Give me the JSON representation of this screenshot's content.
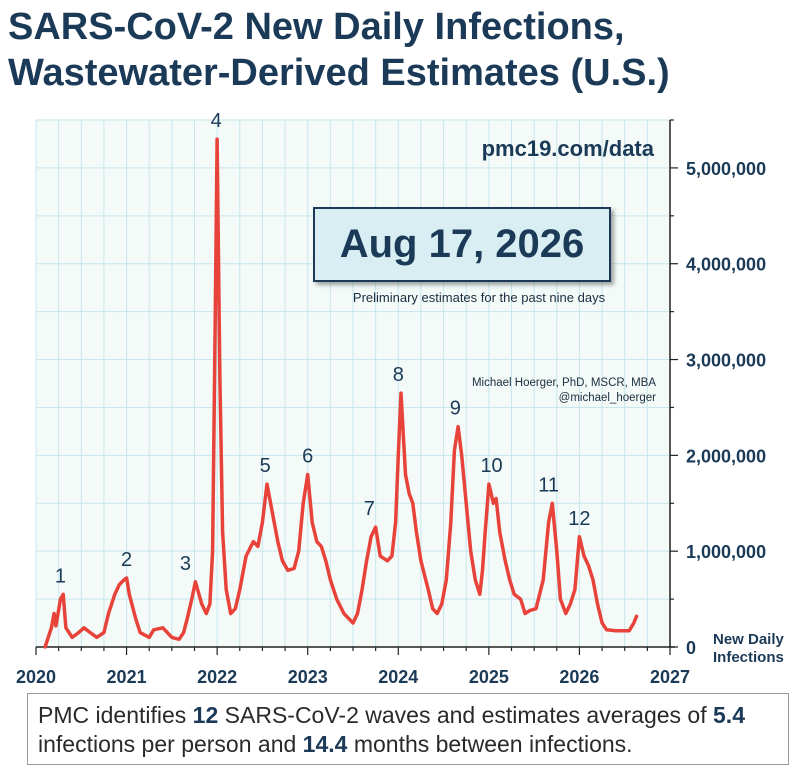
{
  "title_line1": "SARS-CoV-2 New Daily Infections,",
  "title_line2": "Wastewater-Derived Estimates (U.S.)",
  "source": "pmc19.com/data",
  "date": "Aug 17, 2026",
  "prelim_note": "Preliminary estimates for the past nine days",
  "author_line1": "Michael Hoerger, PhD, MSCR, MBA",
  "author_line2": "@michael_hoerger",
  "ylabel_line1": "New Daily",
  "ylabel_line2": "Infections",
  "footer": {
    "p1": "PMC identifies ",
    "waves": "12",
    "p2": " SARS-CoV-2 waves and estimates averages of ",
    "infections": "5.4",
    "p3": " infections per person and ",
    "months": "14.4",
    "p4": " months between infections."
  },
  "colors": {
    "line": "#e8433a",
    "plot_bg": "#f3faf7",
    "grid": "#c7e6ee",
    "text": "#1b3a57"
  },
  "chart_data": {
    "type": "line",
    "x_axis": {
      "min": 2020,
      "max": 2027,
      "ticks": [
        "2020",
        "2021",
        "2022",
        "2023",
        "2024",
        "2025",
        "2026",
        "2027"
      ]
    },
    "y_axis": {
      "min": 0,
      "max": 5500000,
      "ticks": [
        "0",
        "1,000,000",
        "2,000,000",
        "3,000,000",
        "4,000,000",
        "5,000,000"
      ],
      "position": "right"
    },
    "grid": true,
    "x": [
      2020.1,
      2020.17,
      2020.2,
      2020.22,
      2020.27,
      2020.3,
      2020.33,
      2020.4,
      2020.47,
      2020.53,
      2020.6,
      2020.67,
      2020.75,
      2020.8,
      2020.87,
      2020.92,
      2020.97,
      2021.0,
      2021.03,
      2021.1,
      2021.15,
      2021.25,
      2021.3,
      2021.4,
      2021.5,
      2021.58,
      2021.63,
      2021.67,
      2021.72,
      2021.76,
      2021.83,
      2021.88,
      2021.92,
      2021.95,
      2021.98,
      2022.0,
      2022.03,
      2022.06,
      2022.1,
      2022.15,
      2022.2,
      2022.25,
      2022.32,
      2022.4,
      2022.45,
      2022.5,
      2022.55,
      2022.6,
      2022.67,
      2022.72,
      2022.78,
      2022.85,
      2022.9,
      2022.95,
      2023.0,
      2023.05,
      2023.1,
      2023.15,
      2023.2,
      2023.25,
      2023.32,
      2023.4,
      2023.45,
      2023.5,
      2023.55,
      2023.6,
      2023.65,
      2023.7,
      2023.75,
      2023.8,
      2023.88,
      2023.93,
      2023.97,
      2024.0,
      2024.03,
      2024.08,
      2024.12,
      2024.16,
      2024.2,
      2024.25,
      2024.33,
      2024.38,
      2024.43,
      2024.48,
      2024.53,
      2024.58,
      2024.62,
      2024.66,
      2024.7,
      2024.75,
      2024.8,
      2024.85,
      2024.9,
      2024.93,
      2024.96,
      2025.0,
      2025.05,
      2025.08,
      2025.12,
      2025.18,
      2025.23,
      2025.28,
      2025.35,
      2025.4,
      2025.45,
      2025.52,
      2025.6,
      2025.66,
      2025.7,
      2025.75,
      2025.79,
      2025.85,
      2025.9,
      2025.95,
      2026.0,
      2026.05,
      2026.1,
      2026.15,
      2026.2,
      2026.25,
      2026.3,
      2026.4,
      2026.5,
      2026.55,
      2026.6,
      2026.63
    ],
    "series": [
      {
        "values": [
          0,
          200000,
          350000,
          220000,
          500000,
          550000,
          200000,
          100000,
          150000,
          200000,
          150000,
          100000,
          150000,
          350000,
          550000,
          650000,
          700000,
          720000,
          550000,
          300000,
          150000,
          100000,
          180000,
          200000,
          100000,
          80000,
          150000,
          300000,
          500000,
          680000,
          450000,
          350000,
          450000,
          1000000,
          3500000,
          5300000,
          2800000,
          1200000,
          600000,
          350000,
          400000,
          600000,
          950000,
          1100000,
          1050000,
          1300000,
          1700000,
          1450000,
          1100000,
          900000,
          800000,
          820000,
          1000000,
          1500000,
          1800000,
          1300000,
          1100000,
          1050000,
          900000,
          700000,
          500000,
          350000,
          300000,
          250000,
          350000,
          600000,
          900000,
          1150000,
          1250000,
          950000,
          900000,
          950000,
          1300000,
          2000000,
          2650000,
          1800000,
          1600000,
          1500000,
          1200000,
          900000,
          600000,
          400000,
          350000,
          450000,
          700000,
          1300000,
          2050000,
          2300000,
          2000000,
          1500000,
          1000000,
          700000,
          550000,
          800000,
          1200000,
          1700000,
          1500000,
          1550000,
          1200000,
          900000,
          700000,
          550000,
          500000,
          350000,
          380000,
          400000,
          700000,
          1300000,
          1500000,
          1000000,
          500000,
          350000,
          450000,
          600000,
          1150000,
          950000,
          850000,
          700000,
          450000,
          250000,
          180000,
          170000,
          170000,
          170000,
          250000,
          320000
        ]
      }
    ],
    "annotations": [
      {
        "label": "1",
        "x": 2020.27,
        "y": 550000
      },
      {
        "label": "2",
        "x": 2021.0,
        "y": 720000
      },
      {
        "label": "3",
        "x": 2021.65,
        "y": 680000
      },
      {
        "label": "4",
        "x": 2021.99,
        "y": 5300000
      },
      {
        "label": "5",
        "x": 2022.53,
        "y": 1700000
      },
      {
        "label": "6",
        "x": 2023.0,
        "y": 1800000
      },
      {
        "label": "7",
        "x": 2023.68,
        "y": 1250000
      },
      {
        "label": "8",
        "x": 2024.0,
        "y": 2650000
      },
      {
        "label": "9",
        "x": 2024.63,
        "y": 2300000
      },
      {
        "label": "10",
        "x": 2025.03,
        "y": 1700000
      },
      {
        "label": "11",
        "x": 2025.66,
        "y": 1500000
      },
      {
        "label": "12",
        "x": 2026.0,
        "y": 1150000
      }
    ]
  }
}
